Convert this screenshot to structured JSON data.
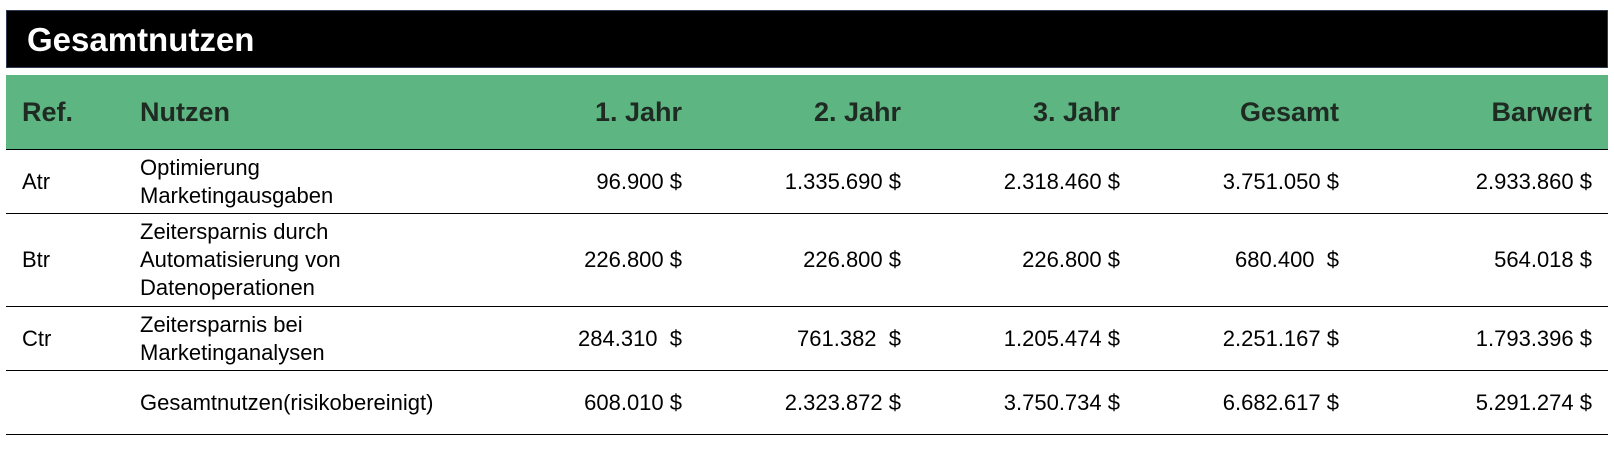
{
  "title": "Gesamtnutzen",
  "columns": [
    "Ref.",
    "Nutzen",
    "1. Jahr",
    "2. Jahr",
    "3. Jahr",
    "Gesamt",
    "Barwert"
  ],
  "rows": [
    {
      "ref": "Atr",
      "nutzen": "Optimierung Marketingausgaben",
      "y1": "96.900 $",
      "y2": "1.335.690 $",
      "y3": "2.318.460 $",
      "gesamt": "3.751.050 $",
      "barwert": "2.933.860 $"
    },
    {
      "ref": "Btr",
      "nutzen": "Zeitersparnis durch Automatisierung von Datenoperationen",
      "y1": "226.800 $",
      "y2": "226.800 $",
      "y3": "226.800 $",
      "gesamt": "680.400  $",
      "barwert": "564.018 $"
    },
    {
      "ref": "Ctr",
      "nutzen": "Zeitersparnis bei Marketinganalysen",
      "y1": "284.310  $",
      "y2": "761.382  $",
      "y3": "1.205.474 $",
      "gesamt": "2.251.167 $",
      "barwert": "1.793.396 $"
    },
    {
      "ref": "",
      "nutzen": "Gesamtnutzen(risikobereinigt)",
      "y1": "608.010 $",
      "y2": "2.323.872 $",
      "y3": "3.750.734 $",
      "gesamt": "6.682.617 $",
      "barwert": "5.291.274 $"
    }
  ]
}
